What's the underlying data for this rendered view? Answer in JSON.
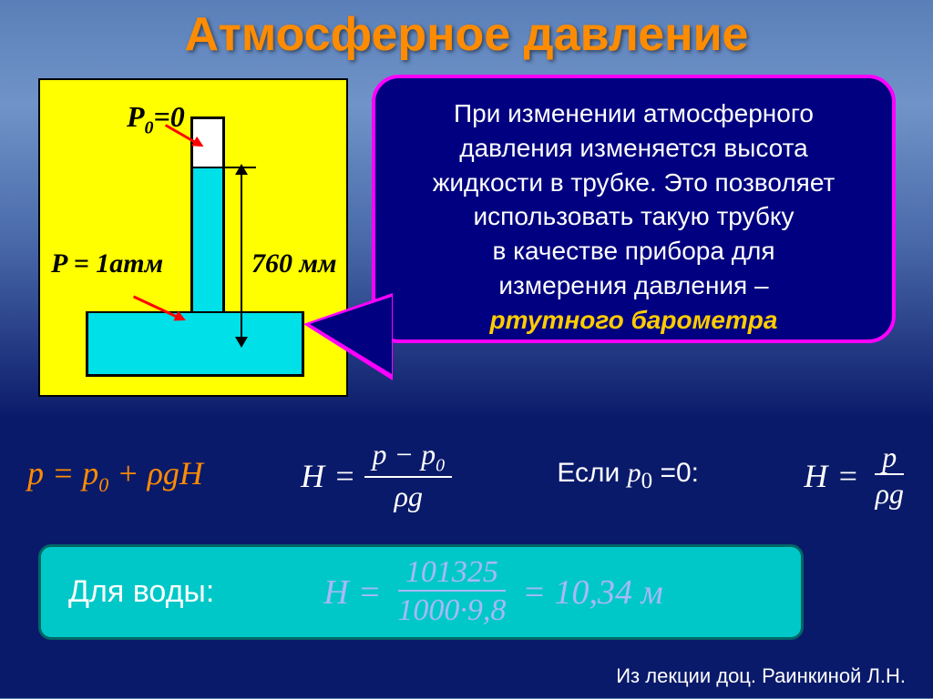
{
  "title": "Атмосферное давление",
  "diagram": {
    "p0_label": "P₀=0",
    "p_atm_label": "P = 1атм",
    "height_label": "760 мм",
    "tube_fill_color": "#00e0e8",
    "bg_color": "#ffff00"
  },
  "callout": {
    "text_line1": "При изменении атмосферного",
    "text_line2": "давления изменяется высота",
    "text_line3": "жидкости в трубке. Это позволяет",
    "text_line4": "использовать такую трубку",
    "text_line5": "в качестве прибора для",
    "text_line6": "измерения давления –",
    "highlight": "ртутного барометра",
    "bg_color": "#000080",
    "border_color": "#ff00ff"
  },
  "formulas": {
    "f1_lhs": "p = ",
    "f1_rhs": "p₀ + ρgH",
    "f2_lhs": "H = ",
    "f2_num": "p − p₀",
    "f2_den": "ρg",
    "condition": "Если p₀ =0:",
    "f3_lhs": "H = ",
    "f3_num": "p",
    "f3_den": "ρg",
    "f1_color": "#ff8c00",
    "std_color": "#ffffff"
  },
  "water_box": {
    "label": "Для воды:",
    "H_lhs": "H = ",
    "numerator": "101325",
    "denom_left": "1000",
    "denom_dot": "·",
    "denom_right": "9,8",
    "result": " = 10,34  м",
    "bg_color": "#00c8c8",
    "formula_color": "#a8b8f8"
  },
  "footer": "Из лекции доц. Раинкиной Л.Н."
}
